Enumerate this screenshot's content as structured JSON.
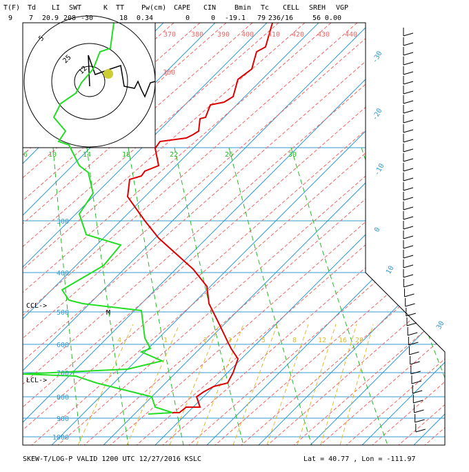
{
  "header": {
    "labels": [
      "T(F)",
      "Td",
      "LI",
      "SWT",
      "K",
      "TT",
      "Pw(cm)",
      "CAPE",
      "CIN",
      "Bmin",
      "Tc",
      "CELL",
      "SREH",
      "VGP"
    ],
    "values": [
      "9",
      "7",
      "20.9",
      "208",
      "-30",
      "18",
      "0.34",
      "0",
      "0",
      "-19.1",
      "79",
      "236/16",
      "56",
      "0.00"
    ]
  },
  "pressure_labels": [
    "300",
    "400",
    "500",
    "600",
    "700",
    "800",
    "900",
    "1000"
  ],
  "isotherm_labels": [
    "-30",
    "-20",
    "-10",
    "0",
    "10",
    "30"
  ],
  "theta_labels": [
    "370",
    "380",
    "390",
    "400",
    "410",
    "420",
    "430",
    "440",
    "360"
  ],
  "moist_labels": [
    "6",
    "10",
    "14",
    "18",
    "22",
    "26",
    "30"
  ],
  "mixing_labels": [
    "4",
    "1",
    "2",
    "3",
    "5",
    "8",
    "12",
    "16",
    "20"
  ],
  "hodograph_labels": [
    "5",
    "25",
    "12"
  ],
  "annotations": {
    "ccl": "CCL->",
    "lcl": "LCL->",
    "m": "M"
  },
  "footer": {
    "title": "SKEW-T/LOG-P VALID 1200 UTC 12/27/2016   KSLC",
    "location": "Lat =    40.77 , Lon =  -111.97"
  }
}
